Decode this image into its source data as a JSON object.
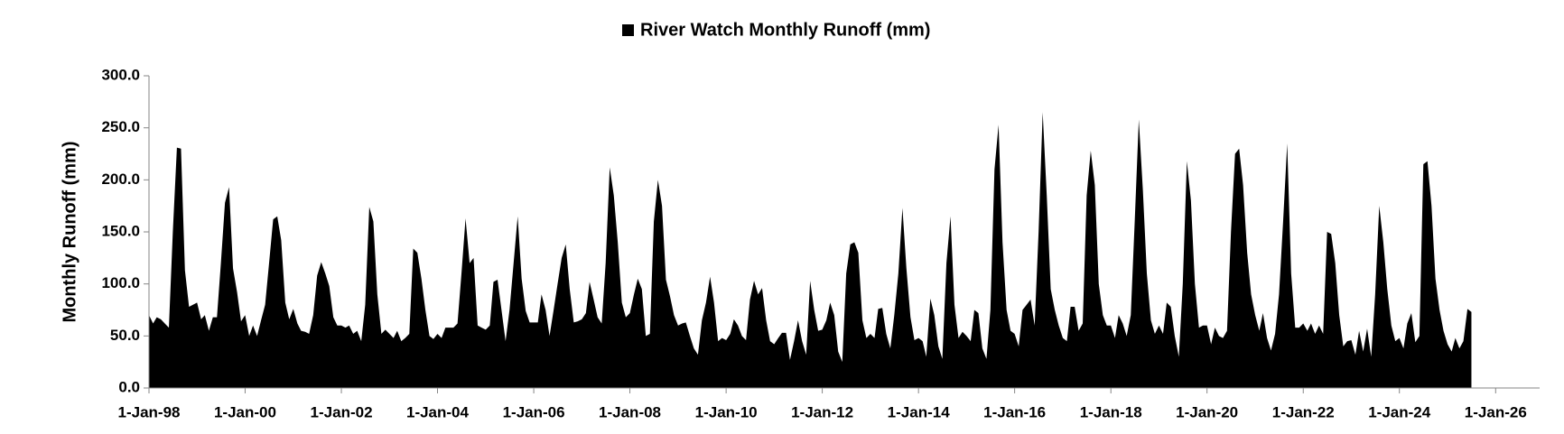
{
  "chart_data": {
    "type": "area",
    "series": [
      {
        "name": "River Watch Monthly Runoff (mm)",
        "color": "#000000",
        "values": [
          70,
          62,
          68,
          66,
          62,
          58,
          150,
          231,
          230,
          113,
          78,
          80,
          82,
          66,
          70,
          55,
          68,
          68,
          120,
          178,
          193,
          115,
          92,
          64,
          70,
          50,
          60,
          50,
          65,
          80,
          120,
          162,
          165,
          142,
          82,
          66,
          76,
          62,
          55,
          54,
          52,
          70,
          108,
          121,
          110,
          98,
          68,
          60,
          60,
          58,
          60,
          52,
          55,
          45,
          80,
          174,
          160,
          90,
          52,
          56,
          52,
          48,
          55,
          45,
          48,
          52,
          134,
          130,
          105,
          75,
          50,
          47,
          52,
          48,
          58,
          58,
          58,
          62,
          110,
          163,
          120,
          125,
          60,
          58,
          56,
          60,
          102,
          104,
          75,
          45,
          75,
          120,
          165,
          105,
          74,
          63,
          63,
          63,
          90,
          75,
          50,
          75,
          100,
          125,
          138,
          95,
          63,
          64,
          66,
          72,
          102,
          85,
          68,
          62,
          120,
          212,
          185,
          140,
          82,
          68,
          72,
          90,
          105,
          95,
          50,
          52,
          160,
          200,
          175,
          104,
          88,
          70,
          60,
          62,
          63,
          50,
          38,
          32,
          65,
          82,
          107,
          82,
          45,
          48,
          46,
          52,
          66,
          60,
          50,
          46,
          85,
          103,
          90,
          96,
          65,
          45,
          42,
          48,
          53,
          53,
          27,
          45,
          65,
          45,
          32,
          103,
          75,
          55,
          56,
          65,
          82,
          70,
          35,
          25,
          110,
          138,
          140,
          130,
          65,
          48,
          52,
          48,
          76,
          77,
          52,
          38,
          70,
          110,
          173,
          115,
          68,
          46,
          48,
          45,
          30,
          86,
          70,
          40,
          28,
          120,
          165,
          80,
          48,
          54,
          50,
          45,
          75,
          72,
          38,
          28,
          75,
          210,
          253,
          140,
          75,
          55,
          52,
          40,
          75,
          80,
          85,
          60,
          150,
          265,
          185,
          95,
          75,
          60,
          48,
          45,
          78,
          78,
          55,
          62,
          185,
          228,
          195,
          100,
          70,
          60,
          60,
          48,
          70,
          62,
          50,
          70,
          160,
          258,
          190,
          110,
          65,
          52,
          60,
          52,
          82,
          78,
          50,
          30,
          100,
          218,
          180,
          100,
          58,
          60,
          60,
          42,
          58,
          50,
          48,
          55,
          150,
          225,
          230,
          195,
          130,
          90,
          70,
          55,
          72,
          48,
          36,
          52,
          90,
          160,
          235,
          110,
          58,
          58,
          62,
          55,
          62,
          52,
          60,
          52,
          150,
          148,
          120,
          70,
          40,
          45,
          46,
          32,
          55,
          35,
          57,
          30,
          90,
          175,
          140,
          95,
          60,
          45,
          48,
          38,
          62,
          72,
          44,
          50,
          215,
          218,
          175,
          105,
          75,
          55,
          42,
          35,
          48,
          38,
          45,
          76,
          73
        ]
      }
    ],
    "x": [
      "1998-01-01",
      "1998-02-01",
      "1998-03-01",
      "1998-04-01",
      "1998-05-01",
      "1998-06-01",
      "1998-07-01",
      "1998-08-01",
      "1998-09-01",
      "1998-10-01",
      "1998-11-01",
      "1998-12-01",
      "1999-01-01",
      "1999-02-01",
      "1999-03-01",
      "1999-04-01",
      "1999-05-01",
      "1999-06-01",
      "1999-07-01",
      "1999-08-01",
      "1999-09-01",
      "1999-10-01",
      "1999-11-01",
      "1999-12-01",
      "2000-01-01",
      "2000-02-01",
      "2000-03-01",
      "2000-04-01",
      "2000-05-01",
      "2000-06-01",
      "2000-07-01",
      "2000-08-01",
      "2000-09-01",
      "2000-10-01",
      "2000-11-01",
      "2000-12-01",
      "2001-01-01",
      "2001-02-01",
      "2001-03-01",
      "2001-04-01",
      "2001-05-01",
      "2001-06-01",
      "2001-07-01",
      "2001-08-01",
      "2001-09-01",
      "2001-10-01",
      "2001-11-01",
      "2001-12-01",
      "2002-01-01",
      "2002-02-01",
      "2002-03-01",
      "2002-04-01",
      "2002-05-01",
      "2002-06-01",
      "2002-07-01",
      "2002-08-01",
      "2002-09-01",
      "2002-10-01",
      "2002-11-01",
      "2002-12-01",
      "2003-01-01",
      "2003-02-01",
      "2003-03-01",
      "2003-04-01",
      "2003-05-01",
      "2003-06-01",
      "2003-07-01",
      "2003-08-01",
      "2003-09-01",
      "2003-10-01",
      "2003-11-01",
      "2003-12-01",
      "2004-01-01",
      "2004-02-01",
      "2004-03-01",
      "2004-04-01",
      "2004-05-01",
      "2004-06-01",
      "2004-07-01",
      "2004-08-01",
      "2004-09-01",
      "2004-10-01",
      "2004-11-01",
      "2004-12-01",
      "2005-01-01",
      "2005-02-01",
      "2005-03-01",
      "2005-04-01",
      "2005-05-01",
      "2005-06-01",
      "2005-07-01",
      "2005-08-01",
      "2005-09-01",
      "2005-10-01",
      "2005-11-01",
      "2005-12-01",
      "2006-01-01",
      "2006-02-01",
      "2006-03-01",
      "2006-04-01",
      "2006-05-01",
      "2006-06-01",
      "2006-07-01",
      "2006-08-01",
      "2006-09-01",
      "2006-10-01",
      "2006-11-01",
      "2006-12-01",
      "2007-01-01",
      "2007-02-01",
      "2007-03-01",
      "2007-04-01",
      "2007-05-01",
      "2007-06-01",
      "2007-07-01",
      "2007-08-01",
      "2007-09-01",
      "2007-10-01",
      "2007-11-01",
      "2007-12-01",
      "2008-01-01",
      "2008-02-01",
      "2008-03-01",
      "2008-04-01",
      "2008-05-01",
      "2008-06-01",
      "2008-07-01",
      "2008-08-01",
      "2008-09-01",
      "2008-10-01",
      "2008-11-01",
      "2008-12-01",
      "2009-01-01",
      "2009-02-01",
      "2009-03-01",
      "2009-04-01",
      "2009-05-01",
      "2009-06-01",
      "2009-07-01",
      "2009-08-01",
      "2009-09-01",
      "2009-10-01",
      "2009-11-01",
      "2009-12-01",
      "2010-01-01",
      "2010-02-01",
      "2010-03-01",
      "2010-04-01",
      "2010-05-01",
      "2010-06-01",
      "2010-07-01",
      "2010-08-01",
      "2010-09-01",
      "2010-10-01",
      "2010-11-01",
      "2010-12-01",
      "2011-01-01",
      "2011-02-01",
      "2011-03-01",
      "2011-04-01",
      "2011-05-01",
      "2011-06-01",
      "2011-07-01",
      "2011-08-01",
      "2011-09-01",
      "2011-10-01",
      "2011-11-01",
      "2011-12-01",
      "2012-01-01",
      "2012-02-01",
      "2012-03-01",
      "2012-04-01",
      "2012-05-01",
      "2012-06-01",
      "2012-07-01",
      "2012-08-01",
      "2012-09-01",
      "2012-10-01",
      "2012-11-01",
      "2012-12-01",
      "2013-01-01",
      "2013-02-01",
      "2013-03-01",
      "2013-04-01",
      "2013-05-01",
      "2013-06-01",
      "2013-07-01",
      "2013-08-01",
      "2013-09-01",
      "2013-10-01",
      "2013-11-01",
      "2013-12-01",
      "2014-01-01",
      "2014-02-01",
      "2014-03-01",
      "2014-04-01",
      "2014-05-01",
      "2014-06-01",
      "2014-07-01",
      "2014-08-01",
      "2014-09-01",
      "2014-10-01",
      "2014-11-01",
      "2014-12-01",
      "2015-01-01",
      "2015-02-01",
      "2015-03-01",
      "2015-04-01",
      "2015-05-01",
      "2015-06-01",
      "2015-07-01",
      "2015-08-01",
      "2015-09-01",
      "2015-10-01",
      "2015-11-01",
      "2015-12-01",
      "2016-01-01",
      "2016-02-01",
      "2016-03-01",
      "2016-04-01",
      "2016-05-01",
      "2016-06-01",
      "2016-07-01",
      "2016-08-01",
      "2016-09-01",
      "2016-10-01",
      "2016-11-01",
      "2016-12-01",
      "2017-01-01",
      "2017-02-01",
      "2017-03-01",
      "2017-04-01",
      "2017-05-01",
      "2017-06-01",
      "2017-07-01",
      "2017-08-01",
      "2017-09-01",
      "2017-10-01",
      "2017-11-01",
      "2017-12-01",
      "2018-01-01",
      "2018-02-01",
      "2018-03-01",
      "2018-04-01",
      "2018-05-01",
      "2018-06-01",
      "2018-07-01",
      "2018-08-01",
      "2018-09-01",
      "2018-10-01",
      "2018-11-01",
      "2018-12-01",
      "2019-01-01",
      "2019-02-01",
      "2019-03-01",
      "2019-04-01",
      "2019-05-01",
      "2019-06-01",
      "2019-07-01",
      "2019-08-01",
      "2019-09-01",
      "2019-10-01",
      "2019-11-01",
      "2019-12-01",
      "2020-01-01",
      "2020-02-01",
      "2020-03-01",
      "2020-04-01",
      "2020-05-01",
      "2020-06-01",
      "2020-07-01",
      "2020-08-01",
      "2020-09-01",
      "2020-10-01",
      "2020-11-01",
      "2020-12-01",
      "2021-01-01",
      "2021-02-01",
      "2021-03-01",
      "2021-04-01",
      "2021-05-01",
      "2021-06-01",
      "2021-07-01",
      "2021-08-01",
      "2021-09-01",
      "2021-10-01",
      "2021-11-01",
      "2021-12-01",
      "2022-01-01",
      "2022-02-01",
      "2022-03-01",
      "2022-04-01",
      "2022-05-01",
      "2022-06-01",
      "2022-07-01",
      "2022-08-01",
      "2022-09-01",
      "2022-10-01",
      "2022-11-01",
      "2022-12-01",
      "2023-01-01",
      "2023-02-01",
      "2023-03-01",
      "2023-04-01",
      "2023-05-01",
      "2023-06-01",
      "2023-07-01",
      "2023-08-01",
      "2023-09-01",
      "2023-10-01",
      "2023-11-01",
      "2023-12-01",
      "2024-01-01",
      "2024-02-01",
      "2024-03-01",
      "2024-04-01",
      "2024-05-01",
      "2024-06-01",
      "2024-07-01",
      "2024-08-01",
      "2024-09-01",
      "2024-10-01",
      "2024-11-01",
      "2024-12-01",
      "2025-01-01",
      "2025-02-01",
      "2025-03-01",
      "2025-04-01",
      "2025-05-01",
      "2025-06-01",
      "2025-07-01"
    ],
    "ylabel": "Monthly Runoff (mm)",
    "ylim": [
      0,
      300
    ],
    "yticks": [
      {
        "value": 0,
        "label": "0.0"
      },
      {
        "value": 50,
        "label": "50.0"
      },
      {
        "value": 100,
        "label": "100.0"
      },
      {
        "value": 150,
        "label": "150.0"
      },
      {
        "value": 200,
        "label": "200.0"
      },
      {
        "value": 250,
        "label": "250.0"
      },
      {
        "value": 300,
        "label": "300.0"
      }
    ],
    "xlim": [
      "1998-01-01",
      "2026-12-01"
    ],
    "xticks": [
      {
        "value": "1998-01-01",
        "label": "1-Jan-98"
      },
      {
        "value": "2000-01-01",
        "label": "1-Jan-00"
      },
      {
        "value": "2002-01-01",
        "label": "1-Jan-02"
      },
      {
        "value": "2004-01-01",
        "label": "1-Jan-04"
      },
      {
        "value": "2006-01-01",
        "label": "1-Jan-06"
      },
      {
        "value": "2008-01-01",
        "label": "1-Jan-08"
      },
      {
        "value": "2010-01-01",
        "label": "1-Jan-10"
      },
      {
        "value": "2012-01-01",
        "label": "1-Jan-12"
      },
      {
        "value": "2014-01-01",
        "label": "1-Jan-14"
      },
      {
        "value": "2016-01-01",
        "label": "1-Jan-16"
      },
      {
        "value": "2018-01-01",
        "label": "1-Jan-18"
      },
      {
        "value": "2020-01-01",
        "label": "1-Jan-20"
      },
      {
        "value": "2022-01-01",
        "label": "1-Jan-22"
      },
      {
        "value": "2024-01-01",
        "label": "1-Jan-24"
      },
      {
        "value": "2026-01-01",
        "label": "1-Jan-26"
      }
    ],
    "legend": "top",
    "grid": false
  }
}
